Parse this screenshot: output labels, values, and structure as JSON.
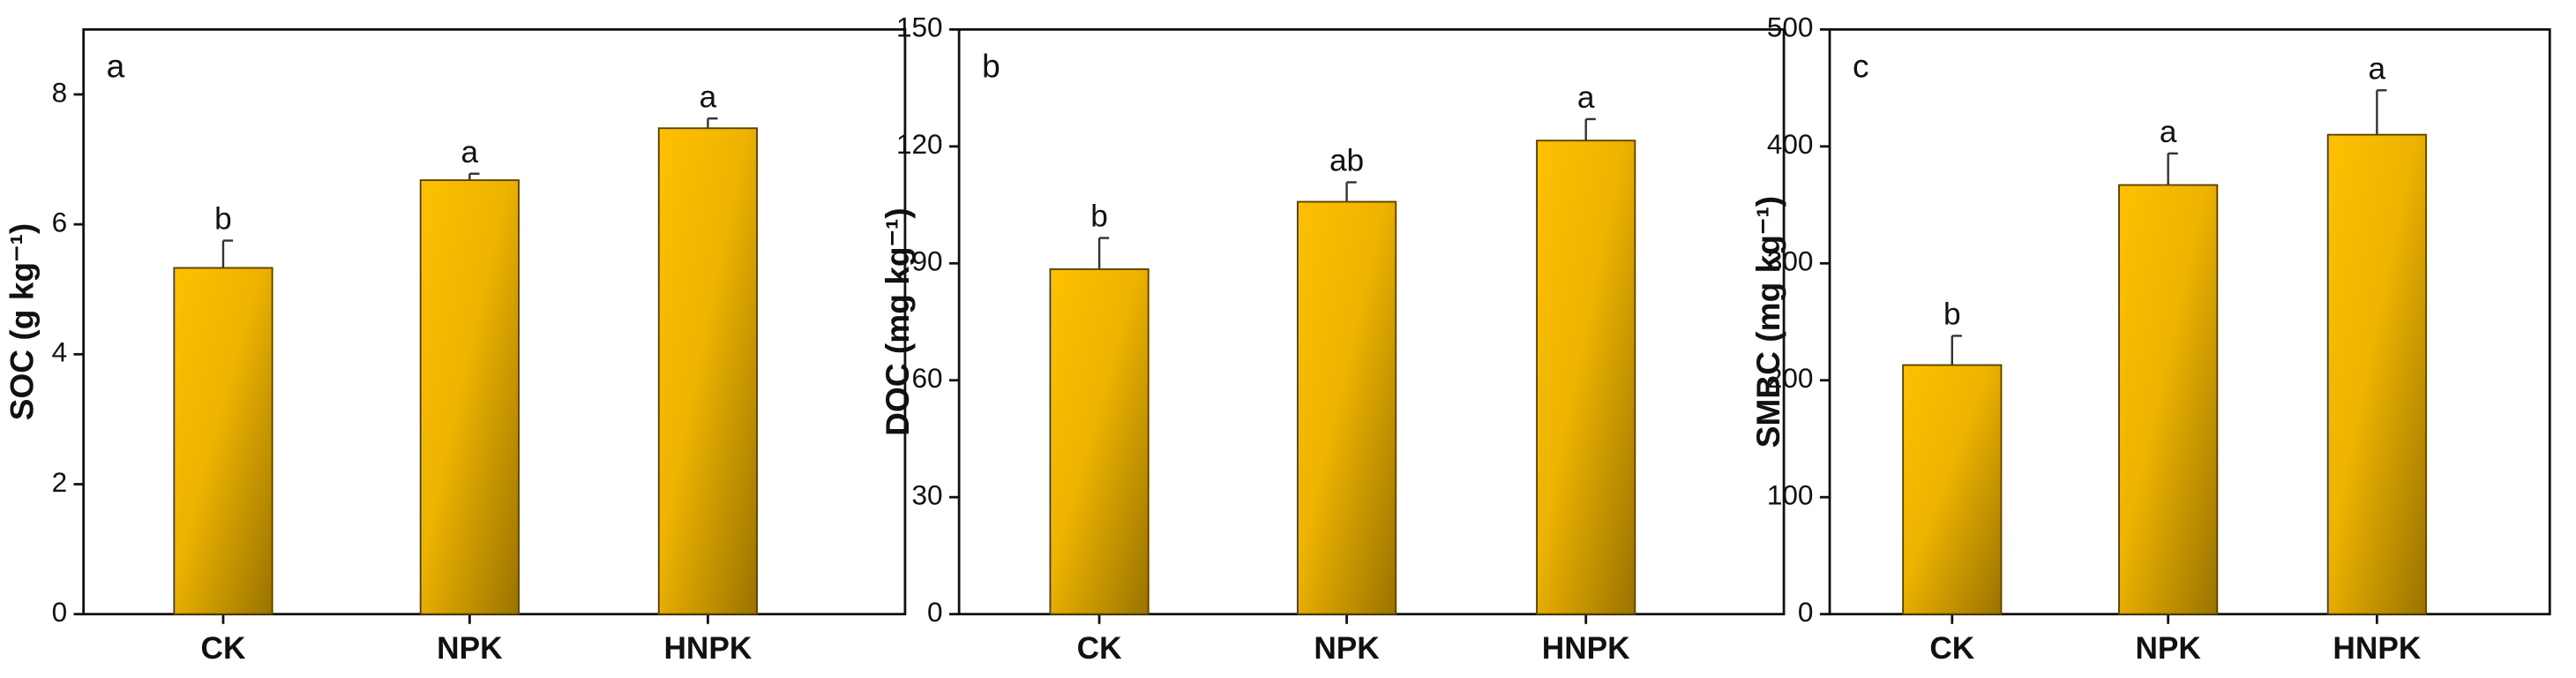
{
  "chart_data": [
    {
      "type": "bar",
      "panel_label": "a",
      "ylabel": "SOC (g kg⁻¹)",
      "categories": [
        "CK",
        "NPK",
        "HNPK"
      ],
      "values": [
        5.33,
        6.68,
        7.48
      ],
      "errors": [
        0.42,
        0.1,
        0.15
      ],
      "significance": [
        "b",
        "a",
        "a"
      ],
      "color": "#ffc000",
      "ylim": [
        0,
        9
      ],
      "yticks": [
        0,
        2,
        4,
        6,
        8
      ]
    },
    {
      "type": "bar",
      "panel_label": "b",
      "ylabel": "DOC (mg kg⁻¹)",
      "categories": [
        "CK",
        "NPK",
        "HNPK"
      ],
      "values": [
        88.5,
        105.8,
        121.5
      ],
      "errors": [
        8,
        5,
        5.5
      ],
      "significance": [
        "b",
        "ab",
        "a"
      ],
      "color": "#ffc000",
      "ylim": [
        0,
        150
      ],
      "yticks": [
        0,
        30,
        60,
        90,
        120,
        150
      ]
    },
    {
      "type": "bar",
      "panel_label": "c",
      "ylabel": "SMBC (mg kg⁻¹)",
      "categories": [
        "CK",
        "NPK",
        "HNPK"
      ],
      "values": [
        213,
        367,
        410
      ],
      "errors": [
        25,
        27,
        38
      ],
      "significance": [
        "b",
        "a",
        "a"
      ],
      "color": "#ffc000",
      "ylim": [
        0,
        500
      ],
      "yticks": [
        0,
        100,
        200,
        300,
        400,
        500
      ]
    }
  ]
}
